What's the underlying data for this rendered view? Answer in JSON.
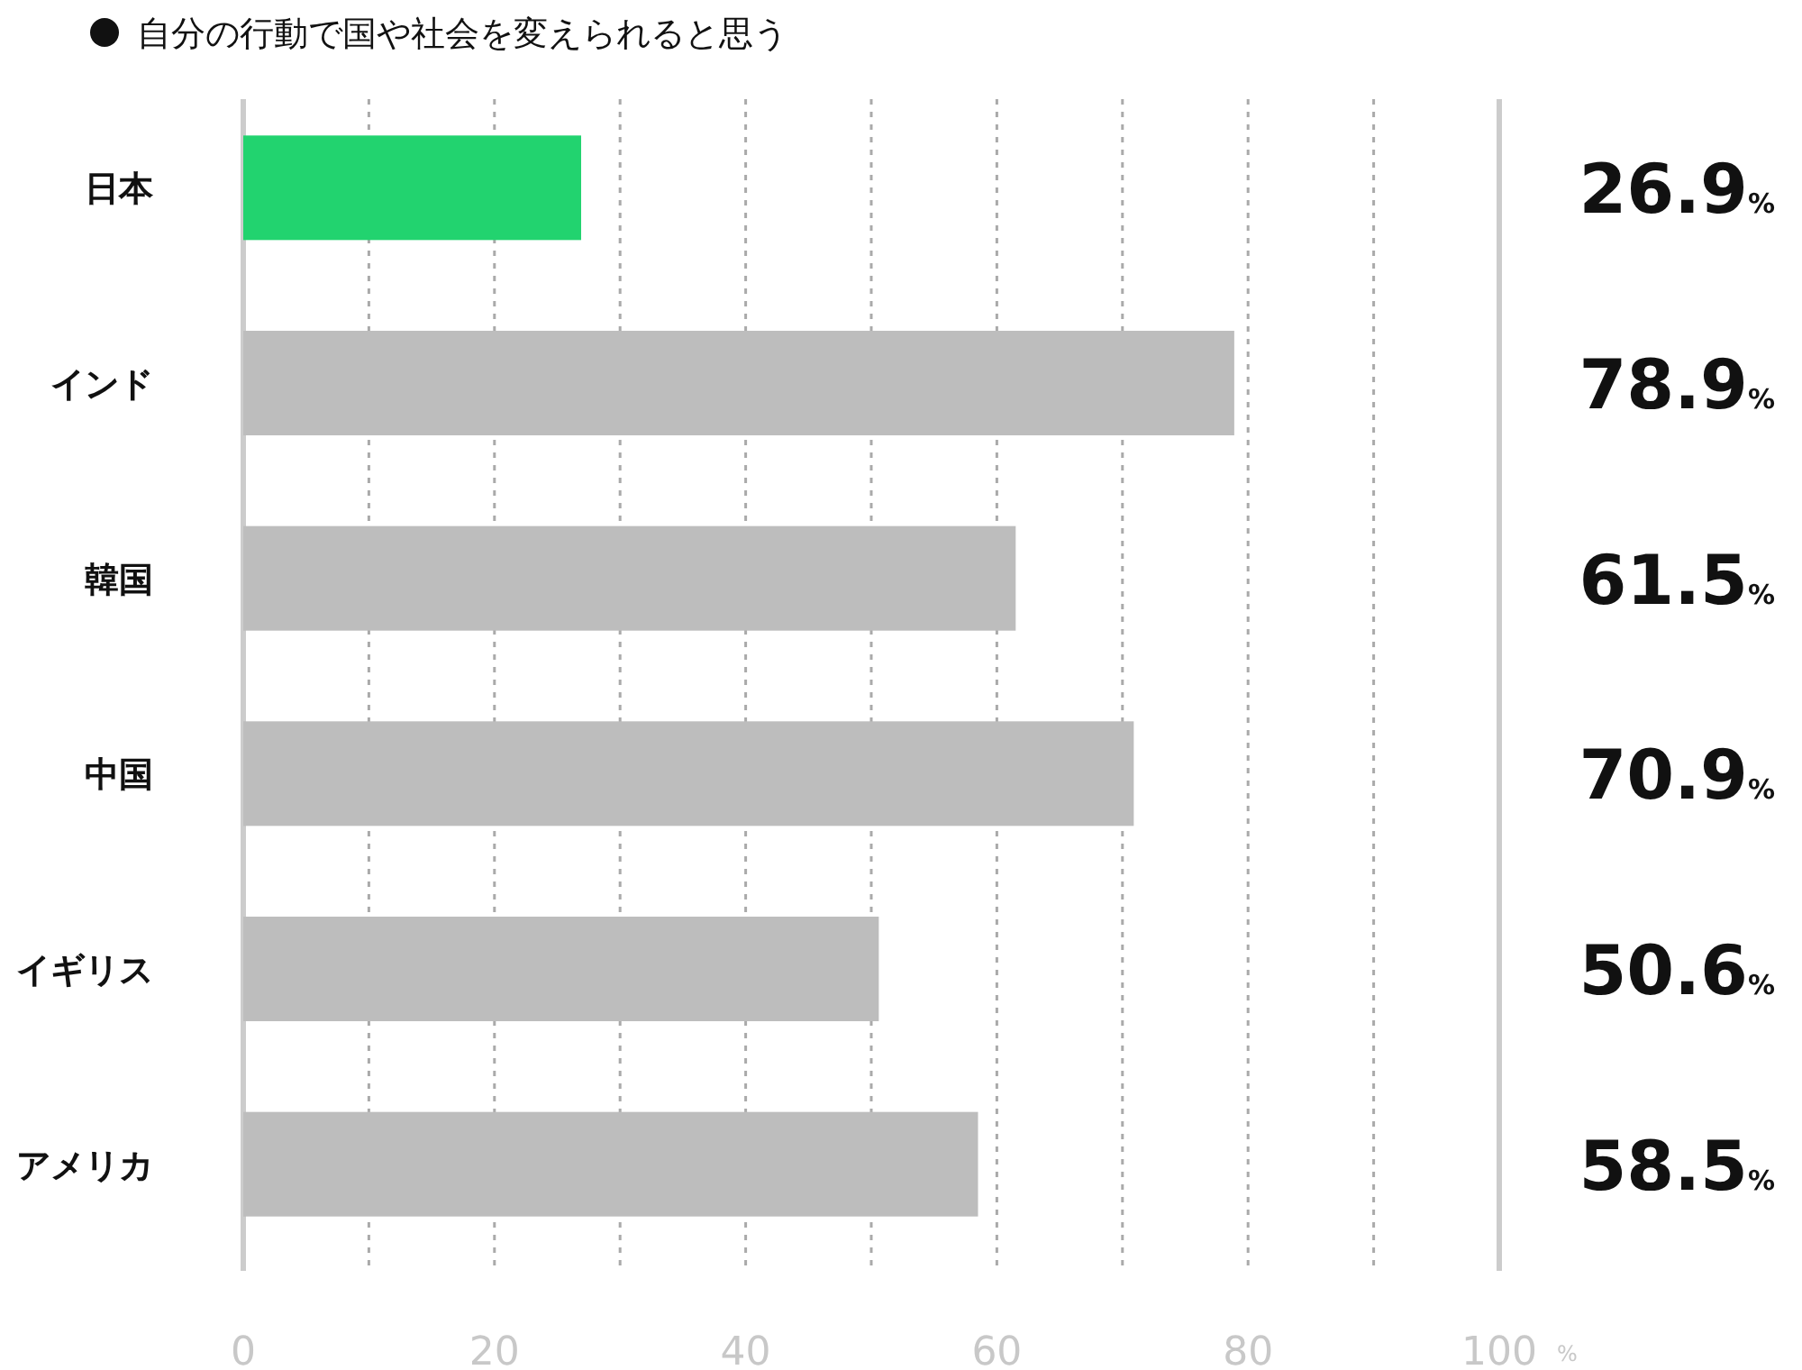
{
  "chart_data": {
    "type": "bar",
    "orientation": "horizontal",
    "title": "自分の行動で国や社会を変えられると思う",
    "xlabel": "%",
    "categories": [
      "日本",
      "インド",
      "韓国",
      "中国",
      "イギリス",
      "アメリカ"
    ],
    "values": [
      26.9,
      78.9,
      61.5,
      70.9,
      50.6,
      58.5
    ],
    "colors": [
      "#22d36f",
      "#bdbdbd",
      "#bdbdbd",
      "#bdbdbd",
      "#bdbdbd",
      "#bdbdbd"
    ],
    "value_labels": [
      "26.9%",
      "78.9%",
      "61.5%",
      "70.9%",
      "50.6%",
      "58.5%"
    ],
    "xlim": [
      0,
      100
    ],
    "xticks": [
      0,
      {
        "value": 10,
        "label": null
      },
      20,
      {
        "value": 30,
        "label": null
      },
      40,
      {
        "value": 50,
        "label": null
      },
      60,
      {
        "value": 70,
        "label": null
      },
      80,
      {
        "value": 90,
        "label": null
      },
      100
    ],
    "grid": "x"
  }
}
